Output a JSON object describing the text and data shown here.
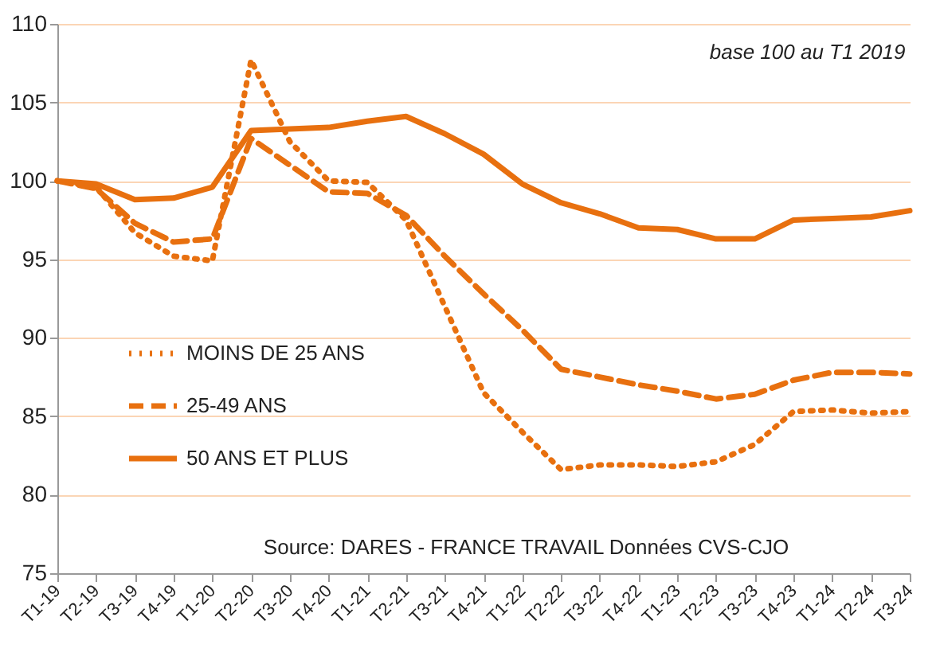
{
  "chart_data": {
    "type": "line",
    "categories": [
      "T1-19",
      "T2-19",
      "T3-19",
      "T4-19",
      "T1-20",
      "T2-20",
      "T3-20",
      "T4-20",
      "T1-21",
      "T2-21",
      "T3-21",
      "T4-21",
      "T1-22",
      "T2-22",
      "T3-22",
      "T4-22",
      "T1-23",
      "T2-23",
      "T3-23",
      "T4-23",
      "T1-24",
      "T2-24",
      "T3-24"
    ],
    "series": [
      {
        "name": "MOINS DE 25 ANS",
        "color": "#e8700f",
        "line_style": "dotted",
        "values": [
          100,
          99.6,
          96.7,
          95.2,
          94.9,
          107.7,
          102.5,
          100,
          99.9,
          97.5,
          92,
          86.5,
          84,
          81.6,
          81.9,
          81.9,
          81.8,
          82.1,
          83.2,
          85.3,
          85.4,
          85.2,
          85.3
        ]
      },
      {
        "name": "25-49 ANS",
        "color": "#e8700f",
        "line_style": "dashed",
        "values": [
          100,
          99.5,
          97.3,
          96.1,
          96.3,
          102.7,
          101,
          99.3,
          99.2,
          97.8,
          95.2,
          92.8,
          90.5,
          88,
          87.5,
          87,
          86.6,
          86.1,
          86.4,
          87.3,
          87.8,
          87.8,
          87.7
        ]
      },
      {
        "name": "50 ANS ET PLUS",
        "color": "#e8700f",
        "line_style": "solid",
        "values": [
          100,
          99.8,
          98.8,
          98.9,
          99.6,
          103.2,
          103.3,
          103.4,
          103.8,
          104.1,
          103,
          101.7,
          99.8,
          98.6,
          97.9,
          97,
          96.9,
          96.3,
          96.3,
          97.5,
          97.6,
          97.7,
          98.1
        ]
      }
    ],
    "ylim": [
      75,
      110
    ],
    "yticks": [
      75,
      80,
      85,
      90,
      95,
      100,
      105,
      110
    ],
    "grid": "y",
    "legend": "left",
    "marker": "none",
    "annotations": [
      "base 100  au T1 2019",
      "Source: DARES - FRANCE TRAVAIL Données CVS-CJO"
    ]
  }
}
